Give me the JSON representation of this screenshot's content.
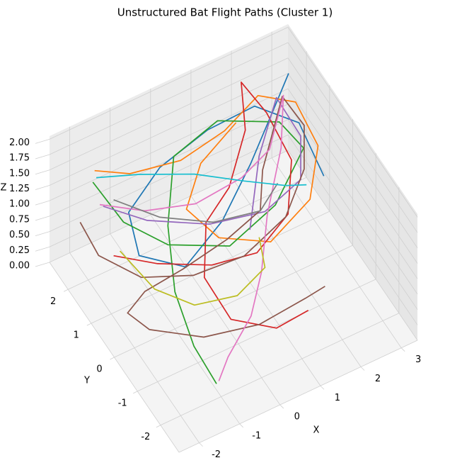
{
  "chart_data": {
    "type": "line3d",
    "title": "Unstructured Bat Flight Paths (Cluster 1)",
    "x_label": "X",
    "y_label": "Y",
    "z_label": "Z",
    "xlim": [
      -2.5,
      3.4
    ],
    "ylim": [
      -2.8,
      2.8
    ],
    "zlim": [
      0,
      2.05
    ],
    "xticks": [
      -2,
      -1,
      0,
      1,
      2,
      3
    ],
    "yticks": [
      -2,
      -1,
      0,
      1,
      2
    ],
    "zticks": [
      {
        "value": 0,
        "label": "0.00"
      },
      {
        "value": 0.25,
        "label": "0.25"
      },
      {
        "value": 0.5,
        "label": "0.50"
      },
      {
        "value": 0.75,
        "label": "0.75"
      },
      {
        "value": 1,
        "label": "1.00"
      },
      {
        "value": 1.25,
        "label": "1.25"
      },
      {
        "value": 1.5,
        "label": "1.50"
      },
      {
        "value": 1.75,
        "label": "1.75"
      },
      {
        "value": 2,
        "label": "2.00"
      }
    ],
    "grid": true,
    "series": [
      {
        "color": "#1f77b4",
        "x": [
          2.9,
          2.4,
          1.5,
          0.4,
          -0.8,
          -1.6,
          -1.4,
          -0.4,
          0.9,
          2.0,
          2.7,
          2.8
        ],
        "y": [
          1.9,
          1.6,
          1.1,
          0.4,
          -0.1,
          0.5,
          1.3,
          1.7,
          1.9,
          1.8,
          1.1,
          0.2
        ],
        "z": [
          1.9,
          1.7,
          1.3,
          1.1,
          1.0,
          1.1,
          1.3,
          1.5,
          1.6,
          1.7,
          1.6,
          1.2
        ]
      },
      {
        "color": "#ff7f0e",
        "x": [
          -1.9,
          -1.2,
          0.0,
          1.2,
          2.2,
          2.9,
          3.0,
          2.4,
          1.2,
          0.2,
          -0.2,
          0.5,
          1.6
        ],
        "y": [
          1.9,
          1.6,
          1.5,
          1.7,
          2.0,
          1.6,
          0.8,
          0.1,
          -0.3,
          0.2,
          0.9,
          1.5,
          1.9
        ],
        "z": [
          1.8,
          1.7,
          1.6,
          1.6,
          1.7,
          1.6,
          1.3,
          1.0,
          0.9,
          1.0,
          1.2,
          1.4,
          1.5
        ]
      },
      {
        "color": "#2ca02c",
        "x": [
          -2.0,
          -1.7,
          -1.0,
          0.3,
          1.6,
          2.7,
          2.5,
          1.2,
          0.0,
          -0.6,
          -1.0,
          -1.1,
          -1.0
        ],
        "y": [
          1.8,
          1.0,
          0.3,
          -0.1,
          0.2,
          0.9,
          1.6,
          2.0,
          1.8,
          1.0,
          0.0,
          -1.0,
          -1.8
        ],
        "z": [
          1.7,
          1.4,
          1.2,
          1.0,
          1.1,
          1.3,
          1.4,
          1.6,
          1.5,
          1.0,
          0.6,
          0.3,
          0.1
        ]
      },
      {
        "color": "#d62728",
        "x": [
          -2.0,
          -1.2,
          -0.2,
          0.8,
          1.8,
          2.4,
          2.3,
          1.9,
          1.6,
          0.8,
          0.0,
          -0.5,
          -0.3,
          0.6,
          1.5
        ],
        "y": [
          0.9,
          0.4,
          -0.2,
          -0.4,
          0.0,
          0.9,
          1.8,
          2.2,
          1.5,
          0.8,
          0.4,
          -0.4,
          -1.2,
          -1.6,
          -1.4
        ],
        "z": [
          1.0,
          0.9,
          0.9,
          0.9,
          1.0,
          1.2,
          1.5,
          1.9,
          1.6,
          1.3,
          1.2,
          0.9,
          0.6,
          0.4,
          0.3
        ]
      },
      {
        "color": "#9467bd",
        "x": [
          -1.8,
          -1.0,
          0.2,
          1.4,
          2.4,
          2.8,
          2.6,
          2.0,
          1.2
        ],
        "y": [
          1.7,
          1.2,
          0.6,
          0.3,
          0.5,
          1.2,
          1.9,
          1.6,
          0.6
        ],
        "z": [
          1.3,
          1.1,
          1.0,
          1.0,
          1.1,
          1.3,
          1.6,
          1.0,
          0.6
        ]
      },
      {
        "color": "#8c564b",
        "x": [
          -2.2,
          -2.2,
          -1.6,
          -0.6,
          0.6,
          1.8,
          2.6,
          3.0,
          2.8,
          2.2,
          1.8,
          0.8,
          -0.4,
          -1.4,
          -2.0,
          -1.8,
          -0.8,
          0.4,
          1.6,
          2.2
        ],
        "y": [
          2.0,
          1.2,
          0.4,
          -0.1,
          -0.2,
          0.1,
          0.7,
          1.4,
          2.0,
          1.8,
          1.2,
          0.9,
          0.7,
          0.6,
          0.3,
          -0.3,
          -0.9,
          -1.2,
          -1.1,
          -0.9
        ],
        "z": [
          1.0,
          0.9,
          0.8,
          0.8,
          0.8,
          0.9,
          1.1,
          1.3,
          1.5,
          0.6,
          0.4,
          0.4,
          0.4,
          0.4,
          0.4,
          0.4,
          0.3,
          0.3,
          0.3,
          0.2
        ]
      },
      {
        "color": "#e377c2",
        "x": [
          -2.0,
          -1.0,
          0.2,
          1.4,
          2.2,
          2.6,
          2.2,
          1.4,
          0.8,
          0.2,
          -0.6,
          -1.0
        ],
        "y": [
          1.5,
          1.3,
          1.2,
          1.3,
          1.5,
          1.6,
          1.0,
          0.2,
          -0.6,
          -1.2,
          -1.6,
          -1.9
        ],
        "z": [
          1.5,
          1.2,
          1.0,
          1.0,
          1.1,
          1.8,
          1.4,
          1.0,
          0.7,
          0.5,
          0.3,
          0.2
        ]
      },
      {
        "color": "#7f7f7f",
        "x": [
          -1.6,
          -0.8,
          0.3,
          1.4,
          2.0
        ],
        "y": [
          1.6,
          1.0,
          0.6,
          0.5,
          0.8
        ],
        "z": [
          1.4,
          1.2,
          1.0,
          0.9,
          1.0
        ]
      },
      {
        "color": "#bcbd22",
        "x": [
          -1.9,
          -1.5,
          -0.8,
          0.2,
          1.0,
          1.2
        ],
        "y": [
          0.8,
          0.0,
          -0.5,
          -0.6,
          -0.4,
          0.2
        ],
        "z": [
          1.1,
          0.8,
          0.6,
          0.5,
          0.6,
          0.7
        ]
      },
      {
        "color": "#17becf",
        "x": [
          -1.8,
          -0.8,
          0.4,
          1.4,
          2.2,
          2.6
        ],
        "y": [
          2.0,
          1.9,
          1.6,
          1.2,
          0.8,
          0.6
        ],
        "z": [
          1.6,
          1.4,
          1.2,
          1.0,
          0.9,
          0.9
        ]
      }
    ]
  }
}
